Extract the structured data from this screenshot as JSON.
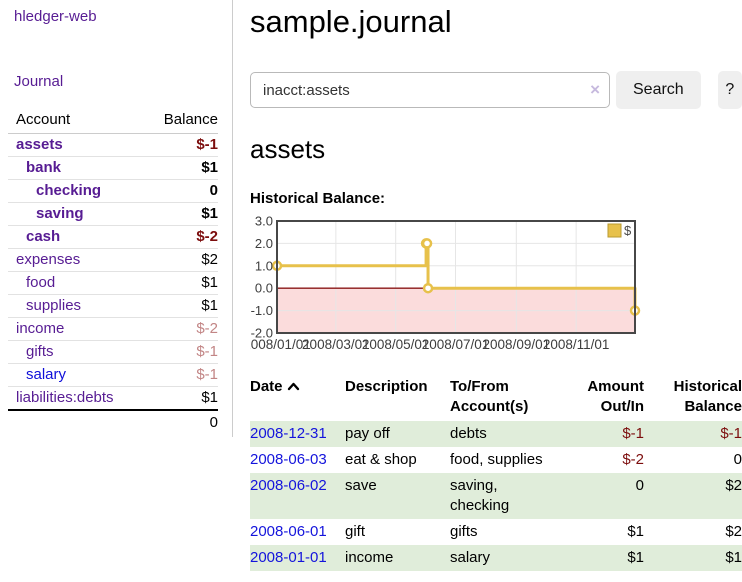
{
  "app": {
    "brand": "hledger-web"
  },
  "sidebar": {
    "journal_link": "Journal",
    "account_header": "Account",
    "balance_header": "Balance",
    "accounts": [
      {
        "name": "assets",
        "indent": 0,
        "bold": true,
        "balance": "$-1",
        "negative": true,
        "visited": true
      },
      {
        "name": "bank",
        "indent": 1,
        "bold": true,
        "balance": "$1",
        "negative": false,
        "visited": true
      },
      {
        "name": "checking",
        "indent": 2,
        "bold": true,
        "balance": "0",
        "negative": false,
        "visited": true
      },
      {
        "name": "saving",
        "indent": 2,
        "bold": true,
        "balance": "$1",
        "negative": false,
        "visited": true
      },
      {
        "name": "cash",
        "indent": 1,
        "bold": true,
        "balance": "$-2",
        "negative": true,
        "visited": true
      },
      {
        "name": "expenses",
        "indent": 0,
        "bold": false,
        "balance": "$2",
        "negative": false,
        "visited": true
      },
      {
        "name": "food",
        "indent": 1,
        "bold": false,
        "balance": "$1",
        "negative": false,
        "visited": true
      },
      {
        "name": "supplies",
        "indent": 1,
        "bold": false,
        "balance": "$1",
        "negative": false,
        "visited": true
      },
      {
        "name": "income",
        "indent": 0,
        "bold": false,
        "balance": "$-2",
        "negative": true,
        "visited": true
      },
      {
        "name": "gifts",
        "indent": 1,
        "bold": false,
        "balance": "$-1",
        "negative": true,
        "visited": true
      },
      {
        "name": "salary",
        "indent": 1,
        "bold": false,
        "balance": "$-1",
        "negative": true,
        "visited": false
      },
      {
        "name": "liabilities:debts",
        "indent": 0,
        "bold": false,
        "balance": "$1",
        "negative": false,
        "visited": true
      }
    ],
    "total": "0"
  },
  "header": {
    "title": "sample.journal"
  },
  "search": {
    "value": "inacct:assets",
    "clear_icon": "×",
    "button_label": "Search",
    "help_label": "?"
  },
  "account_page": {
    "heading": "assets",
    "chart_label": "Historical Balance:"
  },
  "chart_data": {
    "type": "line",
    "title": "Historical Balance",
    "x_start": "2008-01-01",
    "x_end": "2008-12-31",
    "x_ticks": [
      "2008/01/01",
      "2008/03/01",
      "2008/05/01",
      "2008/07/01",
      "2008/09/01",
      "2008/11/01"
    ],
    "y_ticks": [
      3.0,
      2.0,
      1.0,
      0.0,
      -1.0,
      -2.0
    ],
    "ylim": [
      -2,
      3
    ],
    "grid": true,
    "legend": {
      "label": "$",
      "position": "top-right"
    },
    "series": [
      {
        "name": "$",
        "color": "#e7c14b",
        "step": true,
        "marker": "open-circle",
        "points": [
          {
            "date": "2008-01-01",
            "value": 1
          },
          {
            "date": "2008-06-01",
            "value": 2
          },
          {
            "date": "2008-06-02",
            "value": 2
          },
          {
            "date": "2008-06-03",
            "value": 0
          },
          {
            "date": "2008-12-31",
            "value": -1
          }
        ]
      }
    ],
    "negative_region_color": "#fbdcdc",
    "zero_line_color": "#8b1616",
    "grid_color": "#e6e6e6",
    "border_color": "#474747",
    "label_color": "#3d3d3d"
  },
  "register": {
    "headers": {
      "date": "Date",
      "description": "Description",
      "accounts": "To/From Account(s)",
      "amount": "Amount Out/In",
      "balance": "Historical Balance"
    },
    "rows": [
      {
        "date": "2008-12-31",
        "description": "pay off",
        "accounts": "debts",
        "amount": "$-1",
        "amount_negative": true,
        "balance": "$-1",
        "balance_negative": true
      },
      {
        "date": "2008-06-03",
        "description": "eat & shop",
        "accounts": "food, supplies",
        "amount": "$-2",
        "amount_negative": true,
        "balance": "0",
        "balance_negative": false
      },
      {
        "date": "2008-06-02",
        "description": "save",
        "accounts": "saving, checking",
        "amount": "0",
        "amount_negative": false,
        "balance": "$2",
        "balance_negative": false
      },
      {
        "date": "2008-06-01",
        "description": "gift",
        "accounts": "gifts",
        "amount": "$1",
        "amount_negative": false,
        "balance": "$2",
        "balance_negative": false
      },
      {
        "date": "2008-01-01",
        "description": "income",
        "accounts": "salary",
        "amount": "$1",
        "amount_negative": false,
        "balance": "$1",
        "balance_negative": false
      }
    ]
  },
  "colors": {
    "link_purple": "#571c93",
    "link_blue": "#0f0fd9",
    "date_link_blue": "#1414dc",
    "negative_strong": "#7c0d0d",
    "negative_muted": "#c28585",
    "row_stripe_green": "#e0edda",
    "series_gold": "#e7c14b"
  }
}
